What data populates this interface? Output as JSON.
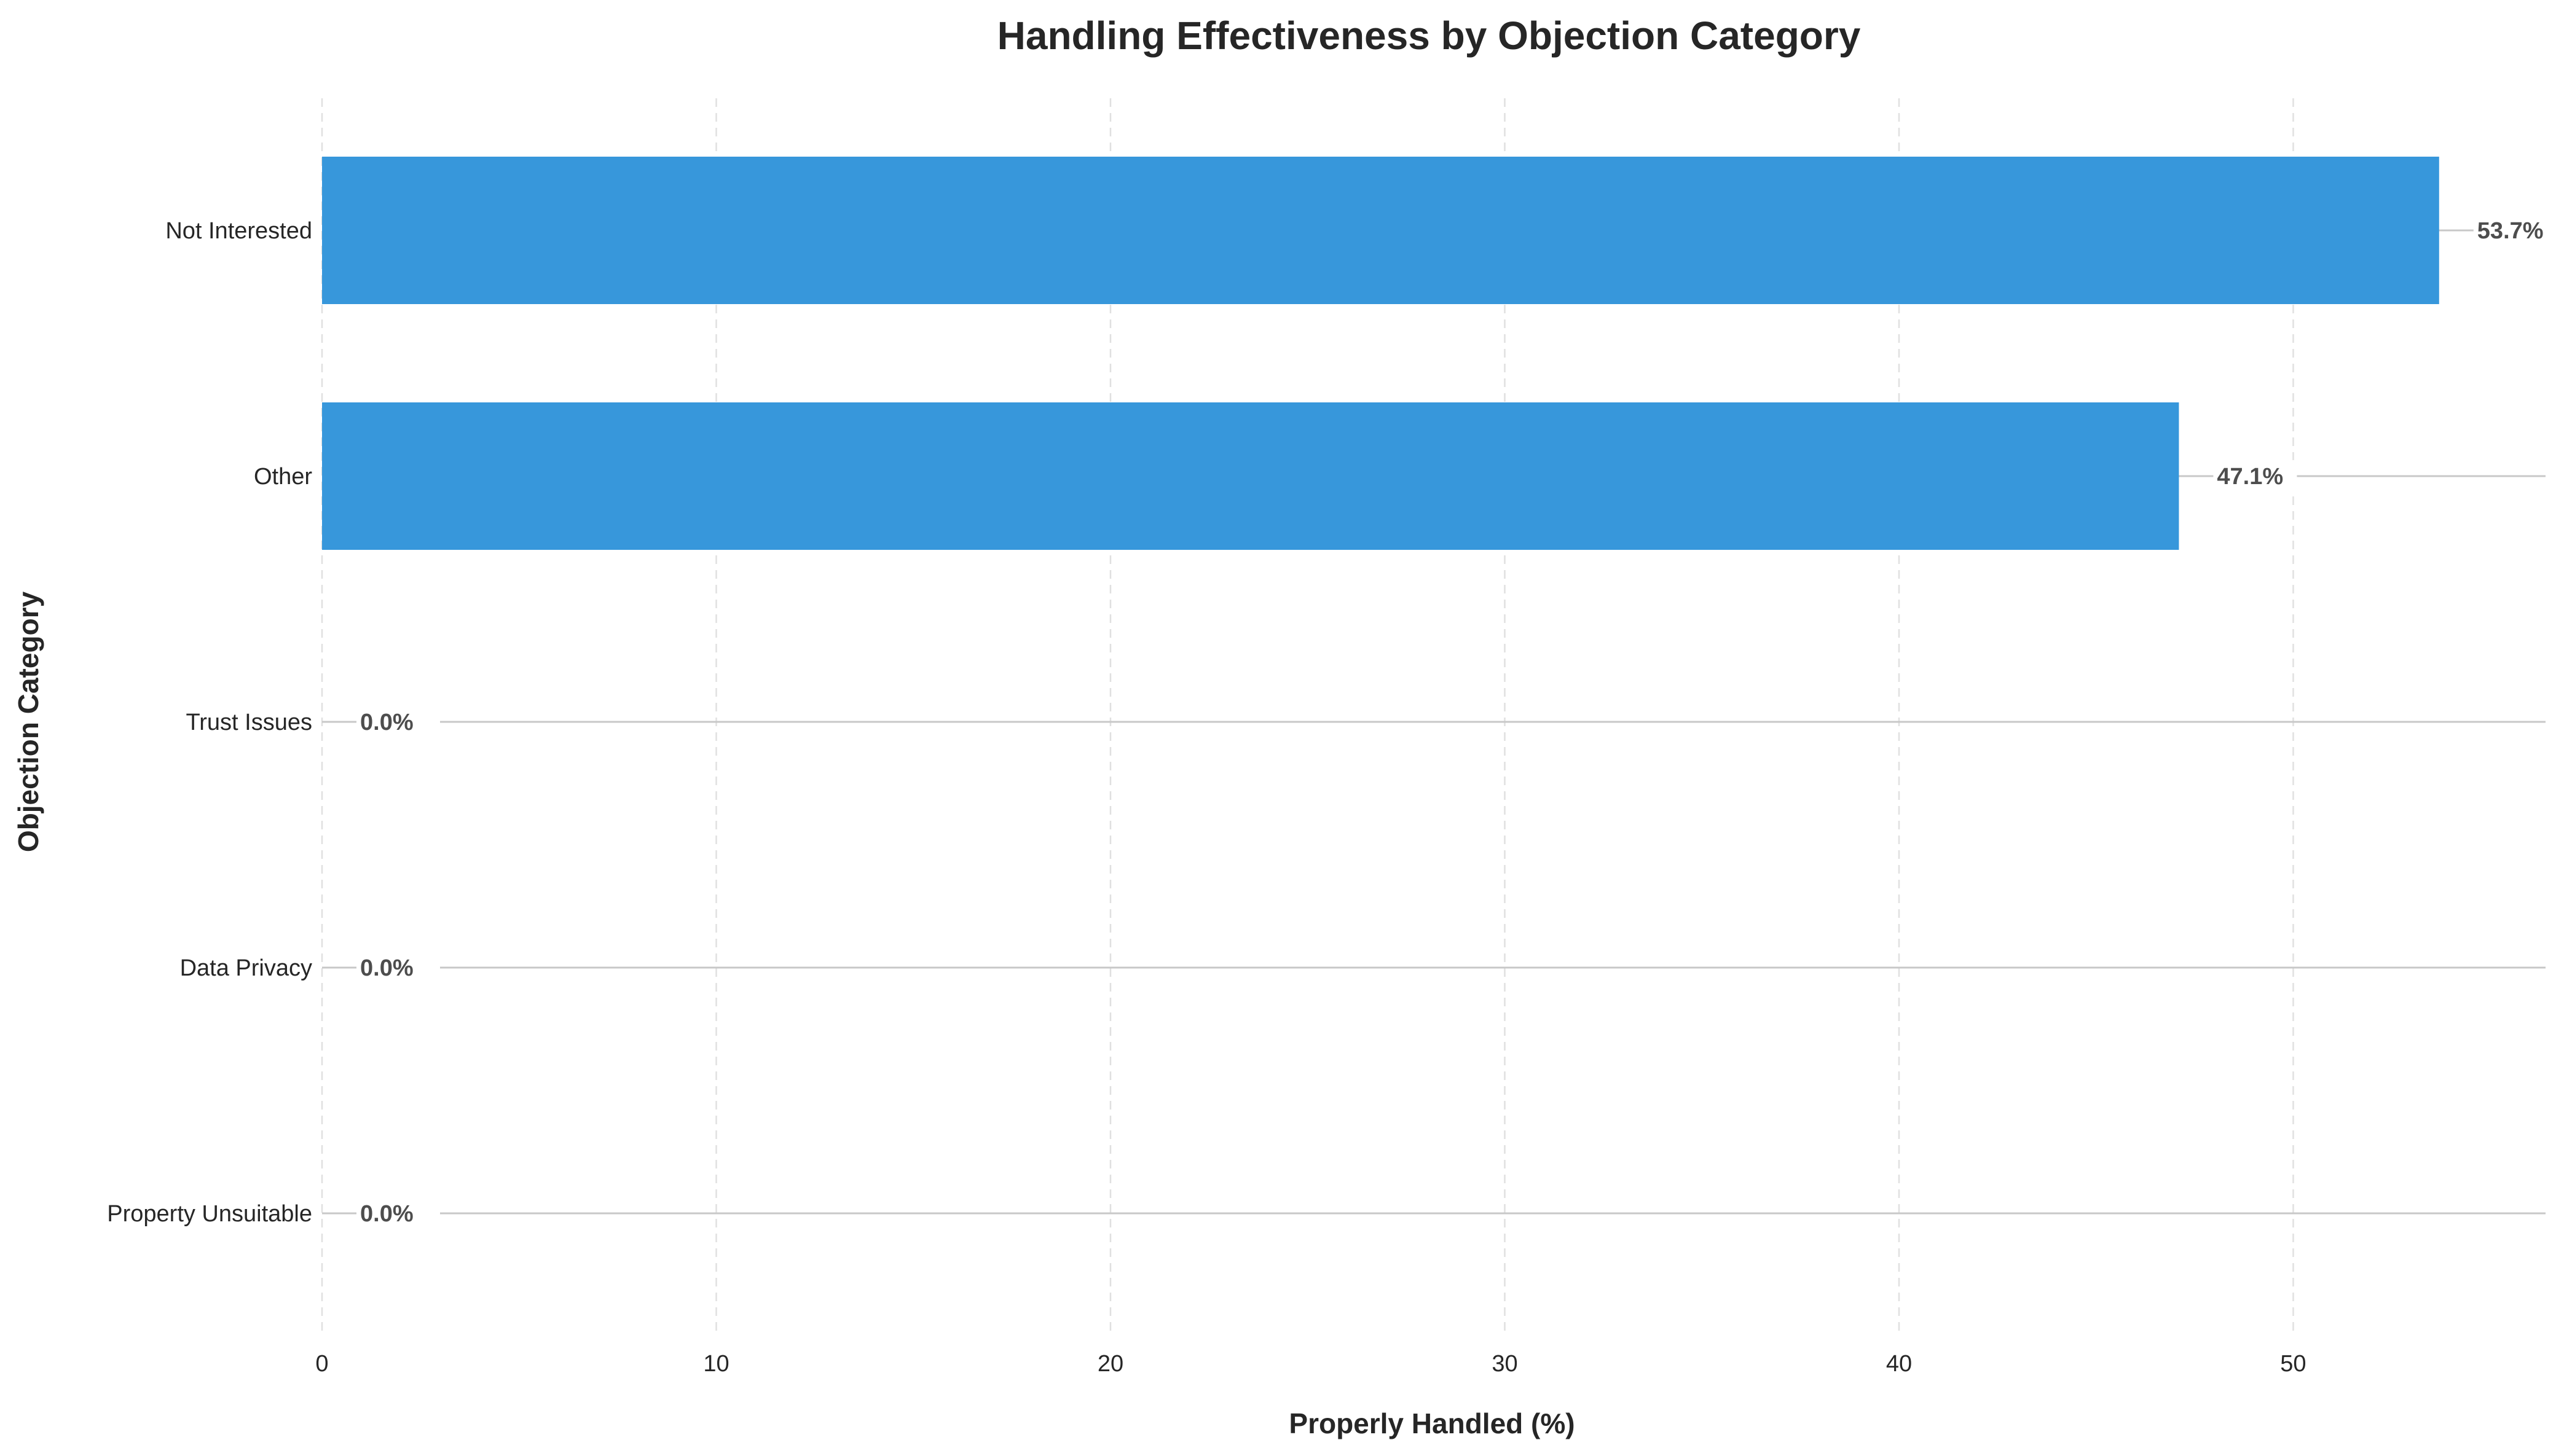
{
  "chart_data": {
    "type": "bar",
    "orientation": "horizontal",
    "title": "Handling Effectiveness by Objection Category",
    "xlabel": "Properly Handled (%)",
    "ylabel": "Objection Category",
    "categories": [
      "Not Interested",
      "Other",
      "Trust Issues",
      "Data Privacy",
      "Property Unsuitable"
    ],
    "values": [
      53.7,
      47.1,
      0.0,
      0.0,
      0.0
    ],
    "value_labels": [
      "53.7%",
      "47.1%",
      "0.0%",
      "0.0%",
      "0.0%"
    ],
    "xlim": [
      0,
      56.4
    ],
    "xticks": [
      0,
      10,
      20,
      30,
      40,
      50
    ],
    "xtick_labels": [
      "0",
      "10",
      "20",
      "30",
      "40",
      "50"
    ],
    "grid": true,
    "bar_color": "#3797db"
  }
}
